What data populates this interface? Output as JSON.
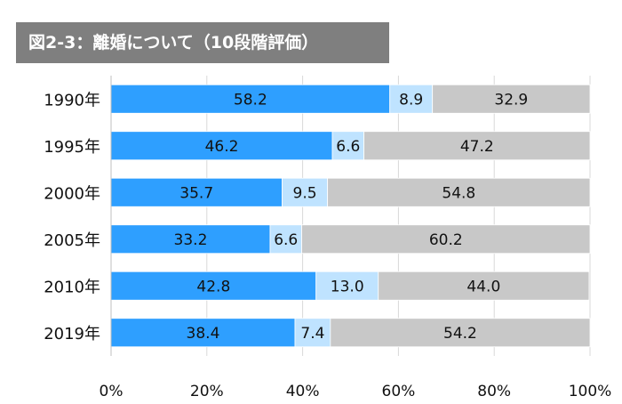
{
  "chart_data": {
    "type": "bar",
    "orientation": "horizontal",
    "stacked": "100%",
    "title": "図2-3：離婚について（10段階評価）",
    "categories": [
      "1990年",
      "1995年",
      "2000年",
      "2005年",
      "2010年",
      "2019年"
    ],
    "series": [
      {
        "values": [
          58.2,
          46.2,
          35.7,
          33.2,
          42.8,
          38.4
        ],
        "color": "#2e9fff"
      },
      {
        "values": [
          8.9,
          6.6,
          9.5,
          6.6,
          13.0,
          7.4
        ],
        "color": "#bfe3ff"
      },
      {
        "values": [
          32.9,
          47.2,
          54.8,
          60.2,
          44.0,
          54.2
        ],
        "color": "#c8c8c8"
      }
    ],
    "value_labels": [
      [
        "58.2",
        "46.2",
        "35.7",
        "33.2",
        "42.8",
        "38.4"
      ],
      [
        "8.9",
        "6.6",
        "9.5",
        "6.6",
        "13.0",
        "7.4"
      ],
      [
        "32.9",
        "47.2",
        "54.8",
        "60.2",
        "44.0",
        "54.2"
      ]
    ],
    "x_ticks": [
      "0%",
      "20%",
      "40%",
      "60%",
      "80%",
      "100%"
    ],
    "xlim": [
      0,
      100
    ],
    "grid": true,
    "legend": "none"
  }
}
